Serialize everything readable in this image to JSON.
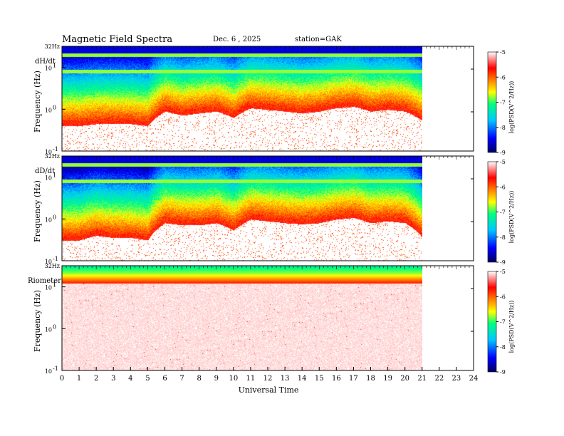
{
  "header": {
    "title": "Magnetic  Field  Spectra",
    "date": "Dec. 6  , 2025",
    "station": "station=GAK"
  },
  "chart_data": {
    "type": "heatmap",
    "xlabel": "Universal Time",
    "x_ticks": [
      "0",
      "1",
      "2",
      "3",
      "4",
      "5",
      "6",
      "7",
      "8",
      "9",
      "10",
      "11",
      "12",
      "13",
      "14",
      "15",
      "16",
      "17",
      "18",
      "19",
      "20",
      "21",
      "22",
      "23",
      "24"
    ],
    "xlim": [
      0,
      24
    ],
    "data_end_hour": 21,
    "ylabel": "Frequency  (Hz)",
    "y_scale": "log",
    "ylim": [
      0.1,
      32
    ],
    "y_ticks": [
      {
        "value": 32,
        "label": "32Hz"
      },
      {
        "value": 10,
        "base": "10",
        "exp": "1"
      },
      {
        "value": 1,
        "base": "10",
        "exp": "0"
      },
      {
        "value": 0.1,
        "base": "10",
        "exp": "-1"
      }
    ],
    "colorbar": {
      "label": "log(PSD(V^2/Hz))",
      "ticks": [
        "-5",
        "-6",
        "-7",
        "-8",
        "-9"
      ],
      "range": [
        -9,
        -5
      ],
      "colors": [
        "#000060",
        "#0000ff",
        "#00c8ff",
        "#00ff80",
        "#ffff00",
        "#ff8000",
        "#ff0000",
        "#ffffff"
      ]
    },
    "panels": [
      {
        "name": "dH/dt",
        "noise_floor_hz": [
          0.45,
          0.45,
          0.5,
          0.5,
          0.5,
          0.45,
          1.0,
          0.8,
          0.9,
          1.0,
          0.7,
          1.2,
          1.1,
          1.0,
          0.9,
          1.0,
          1.2,
          1.3,
          1.0,
          1.1,
          1.0,
          0.6
        ],
        "bands_hz": [
          8,
          20
        ]
      },
      {
        "name": "dD/dt",
        "noise_floor_hz": [
          0.35,
          0.35,
          0.45,
          0.4,
          0.4,
          0.35,
          0.9,
          0.8,
          0.8,
          0.9,
          0.6,
          1.1,
          1.0,
          0.9,
          0.85,
          0.9,
          1.1,
          1.2,
          0.9,
          1.0,
          0.9,
          0.4
        ],
        "bands_hz": [
          8,
          20
        ]
      },
      {
        "name": "Riometer",
        "noise_floor_hz": [
          12,
          12,
          12,
          12,
          12,
          12,
          12,
          12,
          12,
          12,
          12,
          12,
          12,
          12,
          12,
          12,
          12,
          12,
          12,
          12,
          12,
          12
        ],
        "bands_hz": []
      }
    ]
  }
}
